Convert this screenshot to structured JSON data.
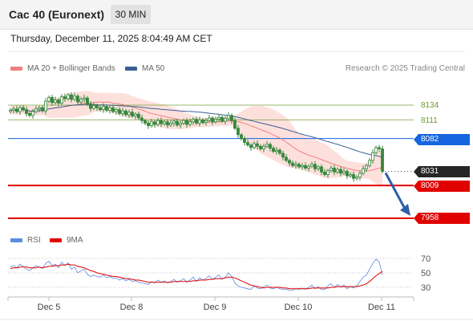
{
  "header": {
    "title": "Cac 40 (Euronext)",
    "timeframe": "30 MIN"
  },
  "datetime": "Thursday, December 11, 2025 8:04:49 AM CET",
  "legend": {
    "bollinger": {
      "label": "MA 20 + Bollinger Bands",
      "color": "#f08080"
    },
    "ma50": {
      "label": "MA 50",
      "color": "#3a5f95"
    },
    "rsi": {
      "label": "RSI",
      "color": "#5b8de0"
    },
    "ma9": {
      "label": "9MA",
      "color": "#e10000"
    }
  },
  "source": "Research © 2025 Trading Central",
  "levels": {
    "r2": {
      "label": "8134",
      "color": "#6c9a2b"
    },
    "r1": {
      "label": "8111",
      "color": "#6c9a2b"
    },
    "pivot": {
      "label": "8082",
      "color": "#1565e0"
    },
    "last": {
      "label": "8031",
      "color": "#262626"
    },
    "s1": {
      "label": "8009",
      "color": "#e10000"
    },
    "s2": {
      "label": "7958",
      "color": "#e10000"
    }
  },
  "rsi_ticks": [
    "70",
    "50",
    "30"
  ],
  "x_labels": [
    "Dec 5",
    "Dec 8",
    "Dec 9",
    "Dec 10",
    "Dec 11"
  ],
  "chart_data": {
    "type": "candlestick",
    "price_range": [
      7958,
      8134
    ],
    "candle_color": "#35863a",
    "bollinger_fill": "#fde0dc",
    "ma20_color": "#f08080",
    "ma50_color": "#3a5f95",
    "closes": [
      8126,
      8128,
      8124,
      8130,
      8127,
      8121,
      8118,
      8124,
      8128,
      8130,
      8125,
      8140,
      8146,
      8138,
      8142,
      8137,
      8147,
      8144,
      8150,
      8143,
      8148,
      8139,
      8143,
      8145,
      8136,
      8129,
      8133,
      8130,
      8127,
      8132,
      8126,
      8130,
      8124,
      8127,
      8121,
      8125,
      8119,
      8123,
      8117,
      8120,
      8114,
      8110,
      8106,
      8102,
      8108,
      8104,
      8110,
      8105,
      8108,
      8103,
      8106,
      8109,
      8103,
      8106,
      8110,
      8104,
      8108,
      8112,
      8106,
      8111,
      8107,
      8110,
      8114,
      8108,
      8112,
      8115,
      8109,
      8113,
      8118,
      8110,
      8098,
      8088,
      8082,
      8076,
      8072,
      8068,
      8074,
      8070,
      8066,
      8070,
      8073,
      8067,
      8062,
      8064,
      8059,
      8053,
      8048,
      8044,
      8040,
      8042,
      8038,
      8040,
      8036,
      8039,
      8042,
      8035,
      8038,
      8030,
      8026,
      8032,
      8036,
      8030,
      8034,
      8028,
      8031,
      8024,
      8026,
      8020,
      8022,
      8028,
      8035,
      8040,
      8048,
      8060,
      8068,
      8066,
      8031
    ],
    "rsi": [
      58,
      60,
      57,
      62,
      59,
      55,
      53,
      57,
      60,
      58,
      56,
      63,
      66,
      60,
      62,
      57,
      65,
      60,
      64,
      55,
      58,
      50,
      53,
      55,
      48,
      45,
      47,
      45,
      44,
      47,
      43,
      45,
      42,
      43,
      40,
      42,
      39,
      41,
      38,
      39,
      37,
      36,
      35,
      34,
      38,
      36,
      40,
      37,
      39,
      36,
      38,
      41,
      37,
      39,
      42,
      37,
      40,
      44,
      38,
      43,
      40,
      42,
      46,
      41,
      44,
      47,
      41,
      44,
      50,
      45,
      36,
      32,
      30,
      29,
      28,
      27,
      32,
      29,
      28,
      31,
      33,
      29,
      28,
      30,
      28,
      27,
      27,
      26,
      26,
      28,
      27,
      29,
      27,
      30,
      33,
      28,
      31,
      27,
      27,
      32,
      35,
      30,
      34,
      30,
      33,
      28,
      31,
      29,
      32,
      38,
      44,
      47,
      55,
      63,
      69,
      65,
      47
    ],
    "ma9": [
      56,
      57,
      57,
      58,
      58,
      58,
      57,
      57,
      57,
      58,
      57,
      58,
      59,
      59,
      60,
      60,
      61,
      61,
      62,
      61,
      61,
      59,
      58,
      57,
      55,
      53,
      52,
      50,
      49,
      48,
      47,
      46,
      45,
      45,
      44,
      43,
      42,
      42,
      41,
      40,
      40,
      39,
      38,
      37,
      37,
      37,
      37,
      37,
      37,
      37,
      37,
      38,
      38,
      38,
      38,
      38,
      38,
      39,
      39,
      40,
      40,
      40,
      41,
      41,
      42,
      42,
      42,
      43,
      44,
      44,
      43,
      41,
      39,
      37,
      35,
      33,
      32,
      31,
      30,
      29,
      30,
      30,
      30,
      30,
      30,
      29,
      29,
      28,
      28,
      28,
      28,
      28,
      28,
      28,
      29,
      29,
      29,
      29,
      29,
      29,
      30,
      30,
      31,
      31,
      31,
      31,
      31,
      31,
      31,
      32,
      33,
      35,
      38,
      42,
      46,
      49,
      52
    ]
  }
}
